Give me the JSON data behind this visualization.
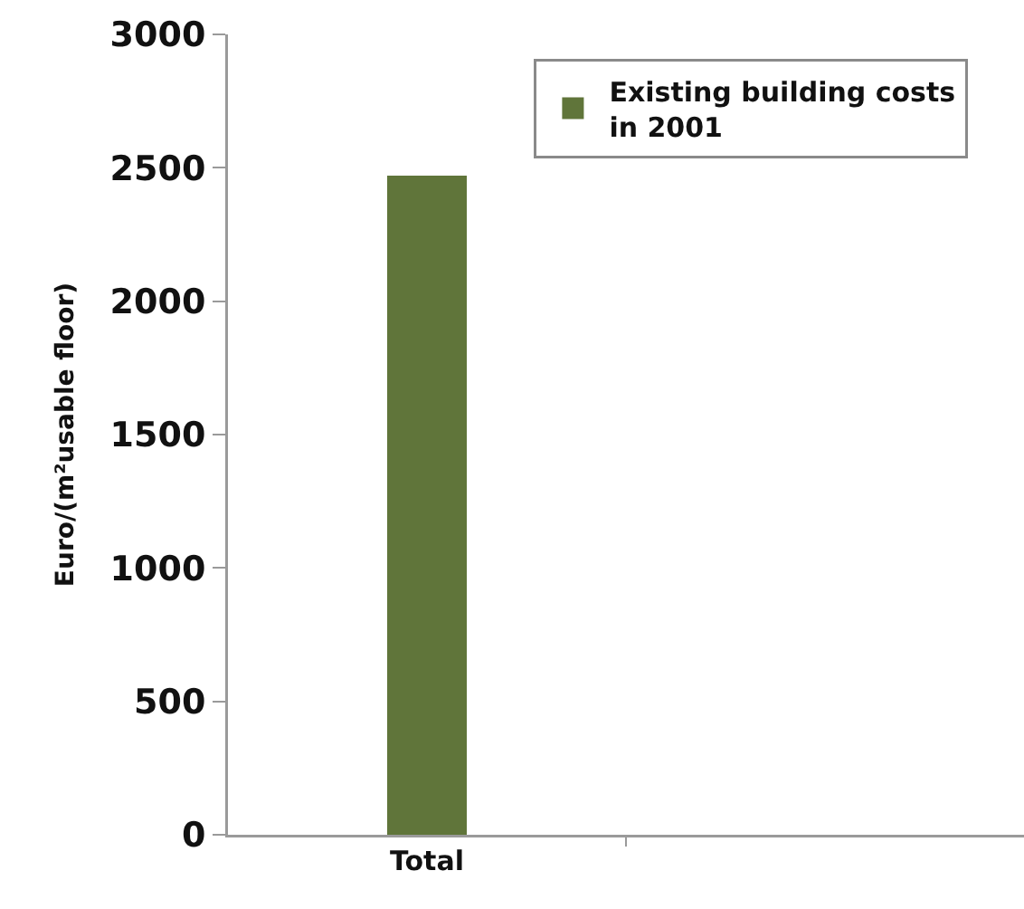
{
  "chart_data": {
    "type": "bar",
    "categories": [
      "Total",
      null
    ],
    "series": [
      {
        "name": "Existing building costs in 2001",
        "color": "#60753a",
        "values": [
          2470,
          null
        ]
      }
    ],
    "ylabel": "Euro/(m²usable floor)",
    "ylim": [
      0,
      3000
    ],
    "yticks": [
      0,
      500,
      1000,
      1500,
      2000,
      2500,
      3000
    ],
    "legend": "top right",
    "grid": false
  }
}
